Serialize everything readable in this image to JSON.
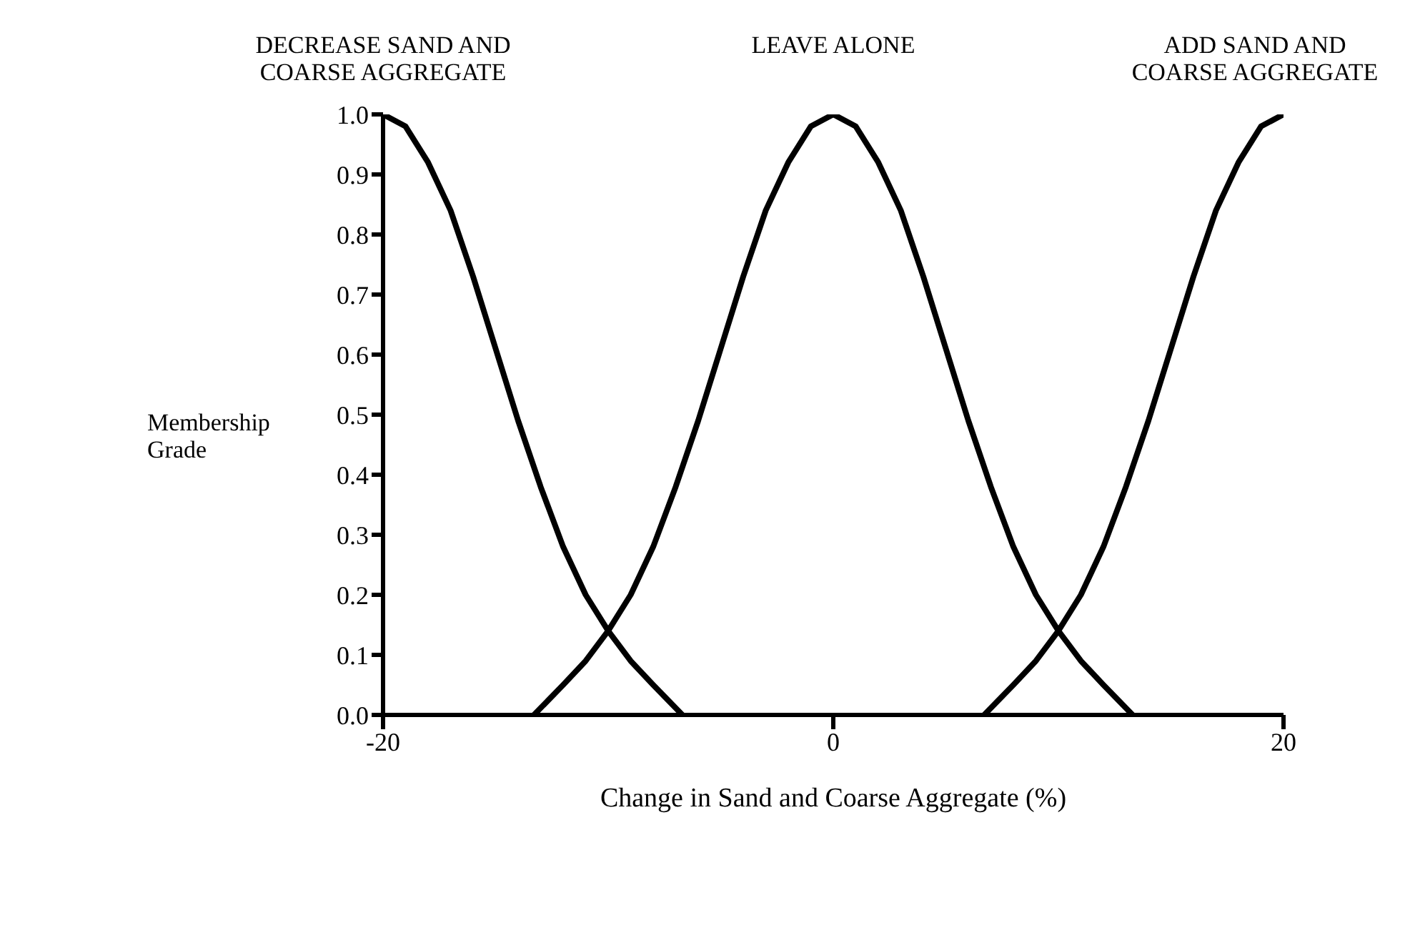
{
  "chart_data": {
    "type": "line",
    "xlabel": "Change in Sand and Coarse Aggregate (%)",
    "ylabel": "Membership Grade",
    "xlim": [
      -20,
      20
    ],
    "xticks": [
      -20,
      0,
      20
    ],
    "ylim": [
      0,
      1
    ],
    "yticks": [
      {
        "value": 0,
        "label": "0.0"
      },
      {
        "value": 0.1,
        "label": "0.1"
      },
      {
        "value": 0.2,
        "label": "0.2"
      },
      {
        "value": 0.3,
        "label": "0.3"
      },
      {
        "value": 0.4,
        "label": "0.4"
      },
      {
        "value": 0.5,
        "label": "0.5"
      },
      {
        "value": 0.6,
        "label": "0.6"
      },
      {
        "value": 0.7,
        "label": "0.7"
      },
      {
        "value": 0.8,
        "label": "0.8"
      },
      {
        "value": 0.9,
        "label": "0.9"
      },
      {
        "value": 1,
        "label": "1.0"
      }
    ],
    "grid": false,
    "legend": false,
    "marker": "none",
    "line_style": "solid",
    "series": [
      {
        "name": "DECREASE SAND AND COARSE AGGREGATE",
        "color": "#000000",
        "x": [
          -20,
          -19,
          -18,
          -17,
          -16,
          -15,
          -14,
          -13,
          -12,
          -11,
          -10,
          -9,
          -8,
          -6.7
        ],
        "values": [
          1.0,
          0.98,
          0.92,
          0.84,
          0.73,
          0.61,
          0.49,
          0.38,
          0.28,
          0.2,
          0.14,
          0.09,
          0.05,
          0
        ]
      },
      {
        "name": "LEAVE ALONE",
        "color": "#000000",
        "x": [
          -13.3,
          -12,
          -11,
          -10,
          -9,
          -8,
          -7,
          -6,
          -5,
          -4,
          -3,
          -2,
          -1,
          0,
          1,
          2,
          3,
          4,
          5,
          6,
          7,
          8,
          9,
          10,
          11,
          12,
          13.3
        ],
        "values": [
          0,
          0.05,
          0.09,
          0.14,
          0.2,
          0.28,
          0.38,
          0.49,
          0.61,
          0.73,
          0.84,
          0.92,
          0.98,
          1.0,
          0.98,
          0.92,
          0.84,
          0.73,
          0.61,
          0.49,
          0.38,
          0.28,
          0.2,
          0.14,
          0.09,
          0.05,
          0
        ]
      },
      {
        "name": "ADD SAND AND COARSE AGGREGATE",
        "color": "#000000",
        "x": [
          6.7,
          8,
          9,
          10,
          11,
          12,
          13,
          14,
          15,
          16,
          17,
          18,
          19,
          20
        ],
        "values": [
          0,
          0.05,
          0.09,
          0.14,
          0.2,
          0.28,
          0.38,
          0.49,
          0.61,
          0.73,
          0.84,
          0.92,
          0.98,
          1.0
        ]
      }
    ]
  }
}
